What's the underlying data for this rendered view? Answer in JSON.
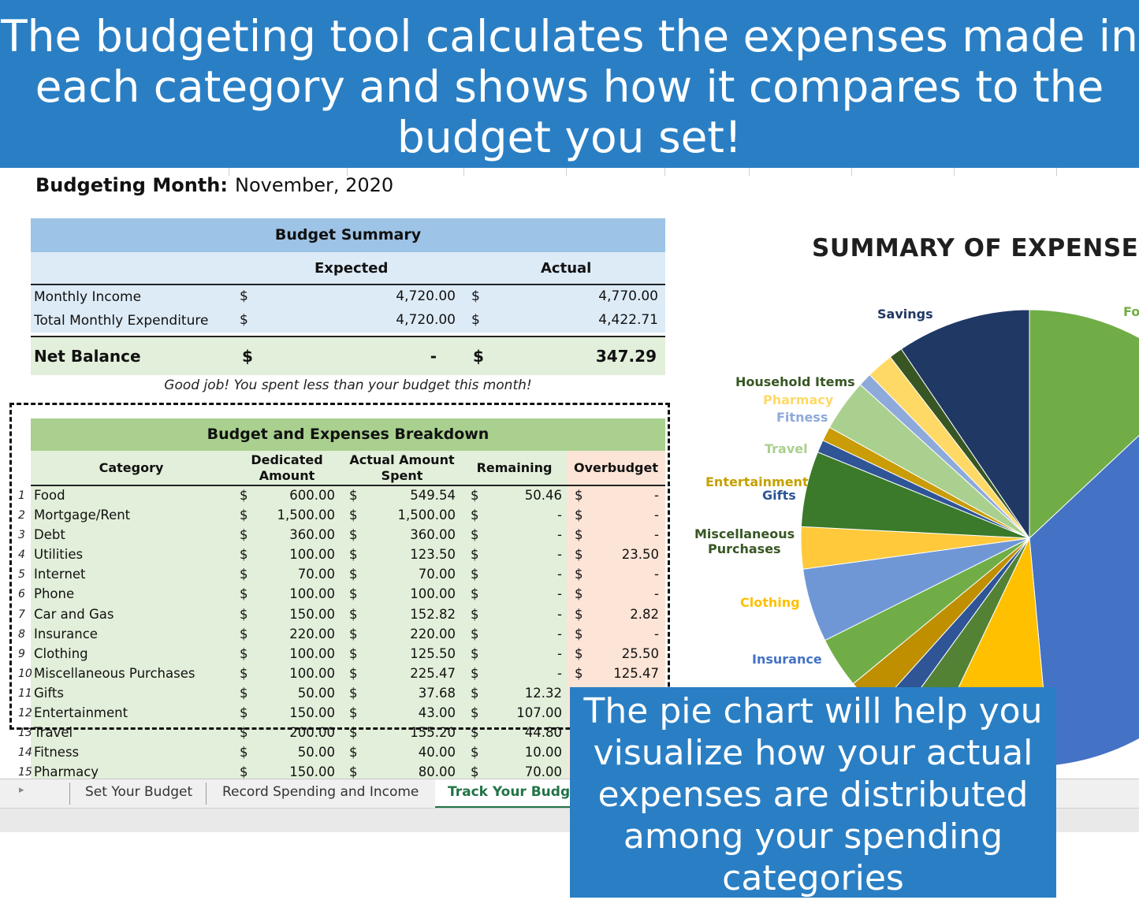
{
  "banner_top": {
    "lines": [
      "The budgeting tool calculates the expenses made in",
      "each category and shows how it compares to the",
      "budget you set!"
    ]
  },
  "month": {
    "label": "Budgeting Month:",
    "value": "November, 2020"
  },
  "summary": {
    "title": "Budget Summary",
    "col_expected": "Expected",
    "col_actual": "Actual",
    "rows": [
      {
        "label": "Monthly Income",
        "cur1": "$",
        "expected": "4,720.00",
        "cur2": "$",
        "actual": "4,770.00"
      },
      {
        "label": "Total Monthly Expenditure",
        "cur1": "$",
        "expected": "4,720.00",
        "cur2": "$",
        "actual": "4,422.71"
      }
    ],
    "net": {
      "label": "Net Balance",
      "cur1": "$",
      "expected": "-",
      "cur2": "$",
      "actual": "347.29"
    },
    "message": "Good job! You spent less than your budget this month!"
  },
  "breakdown": {
    "title": "Budget and Expenses Breakdown",
    "cols": {
      "category": "Category",
      "dedicated_1": "Dedicated",
      "dedicated_2": "Amount",
      "actual_1": "Actual Amount",
      "actual_2": "Spent",
      "remaining": "Remaining",
      "overbudget": "Overbudget"
    },
    "rows": [
      {
        "n": "1",
        "cat": "Food",
        "ded": "600.00",
        "act": "549.54",
        "rem": "50.46",
        "over": "-"
      },
      {
        "n": "2",
        "cat": "Mortgage/Rent",
        "ded": "1,500.00",
        "act": "1,500.00",
        "rem": "-",
        "over": "-"
      },
      {
        "n": "3",
        "cat": "Debt",
        "ded": "360.00",
        "act": "360.00",
        "rem": "-",
        "over": "-"
      },
      {
        "n": "4",
        "cat": "Utilities",
        "ded": "100.00",
        "act": "123.50",
        "rem": "-",
        "over": "23.50"
      },
      {
        "n": "5",
        "cat": "Internet",
        "ded": "70.00",
        "act": "70.00",
        "rem": "-",
        "over": "-"
      },
      {
        "n": "6",
        "cat": "Phone",
        "ded": "100.00",
        "act": "100.00",
        "rem": "-",
        "over": "-"
      },
      {
        "n": "7",
        "cat": "Car and Gas",
        "ded": "150.00",
        "act": "152.82",
        "rem": "-",
        "over": "2.82"
      },
      {
        "n": "8",
        "cat": "Insurance",
        "ded": "220.00",
        "act": "220.00",
        "rem": "-",
        "over": "-"
      },
      {
        "n": "9",
        "cat": "Clothing",
        "ded": "100.00",
        "act": "125.50",
        "rem": "-",
        "over": "25.50"
      },
      {
        "n": "10",
        "cat": "Miscellaneous Purchases",
        "ded": "100.00",
        "act": "225.47",
        "rem": "-",
        "over": "125.47"
      },
      {
        "n": "11",
        "cat": "Gifts",
        "ded": "50.00",
        "act": "37.68",
        "rem": "12.32",
        "over": ""
      },
      {
        "n": "12",
        "cat": "Entertainment",
        "ded": "150.00",
        "act": "43.00",
        "rem": "107.00",
        "over": ""
      },
      {
        "n": "13",
        "cat": "Travel",
        "ded": "200.00",
        "act": "155.20",
        "rem": "44.80",
        "over": ""
      },
      {
        "n": "14",
        "cat": "Fitness",
        "ded": "50.00",
        "act": "40.00",
        "rem": "10.00",
        "over": ""
      },
      {
        "n": "15",
        "cat": "Pharmacy",
        "ded": "150.00",
        "act": "80.00",
        "rem": "70.00",
        "over": ""
      }
    ]
  },
  "tabs": [
    "Set Your Budget",
    "Record Spending and Income",
    "Track Your Budget"
  ],
  "chart_data": {
    "type": "pie",
    "title": "SUMMARY OF EXPENSES",
    "labels_visible": [
      {
        "text": "Savings",
        "color": "#203864"
      },
      {
        "text": "Fo",
        "color": "#70ad47"
      },
      {
        "text": "Household Items",
        "color": "#375623"
      },
      {
        "text": "Pharmacy",
        "color": "#ffd966"
      },
      {
        "text": "Fitness",
        "color": "#8eaadb"
      },
      {
        "text": "Travel",
        "color": "#a9d08e"
      },
      {
        "text": "Entertainment",
        "color": "#c5a000"
      },
      {
        "text": "Gifts",
        "color": "#2f5597"
      },
      {
        "text": "Miscellaneous",
        "color": "#375623"
      },
      {
        "text": "Purchases",
        "color": "#375623"
      },
      {
        "text": "Clothing",
        "color": "#ffc000"
      },
      {
        "text": "Insurance",
        "color": "#4472c4"
      }
    ],
    "slices": [
      {
        "name": "Food",
        "value": 549.54,
        "color": "#70ad47"
      },
      {
        "name": "Mortgage/Rent",
        "value": 1500.0,
        "color": "#4472c4"
      },
      {
        "name": "Debt",
        "value": 360.0,
        "color": "#ffc000"
      },
      {
        "name": "Utilities",
        "value": 123.5,
        "color": "#548235"
      },
      {
        "name": "Internet",
        "value": 70.0,
        "color": "#2f5597"
      },
      {
        "name": "Phone",
        "value": 100.0,
        "color": "#bf8f00"
      },
      {
        "name": "Car and Gas",
        "value": 152.82,
        "color": "#70ad47"
      },
      {
        "name": "Insurance",
        "value": 220.0,
        "color": "#6f97d6"
      },
      {
        "name": "Clothing",
        "value": 125.5,
        "color": "#ffc93b"
      },
      {
        "name": "Miscellaneous Purchases",
        "value": 225.47,
        "color": "#3a7a2a"
      },
      {
        "name": "Gifts",
        "value": 37.68,
        "color": "#2f5597"
      },
      {
        "name": "Entertainment",
        "value": 43.0,
        "color": "#c99c08"
      },
      {
        "name": "Travel",
        "value": 155.2,
        "color": "#a9d08e"
      },
      {
        "name": "Fitness",
        "value": 40.0,
        "color": "#8eaadb"
      },
      {
        "name": "Pharmacy",
        "value": 80.0,
        "color": "#ffd966"
      },
      {
        "name": "Household Items",
        "value": 40.0,
        "color": "#375623"
      },
      {
        "name": "Savings",
        "value": 400.0,
        "color": "#203864"
      }
    ]
  },
  "banner_bottom": {
    "lines": [
      "The pie chart will help you",
      "visualize how your actual",
      "expenses are distributed",
      "among your spending",
      "categories"
    ]
  }
}
